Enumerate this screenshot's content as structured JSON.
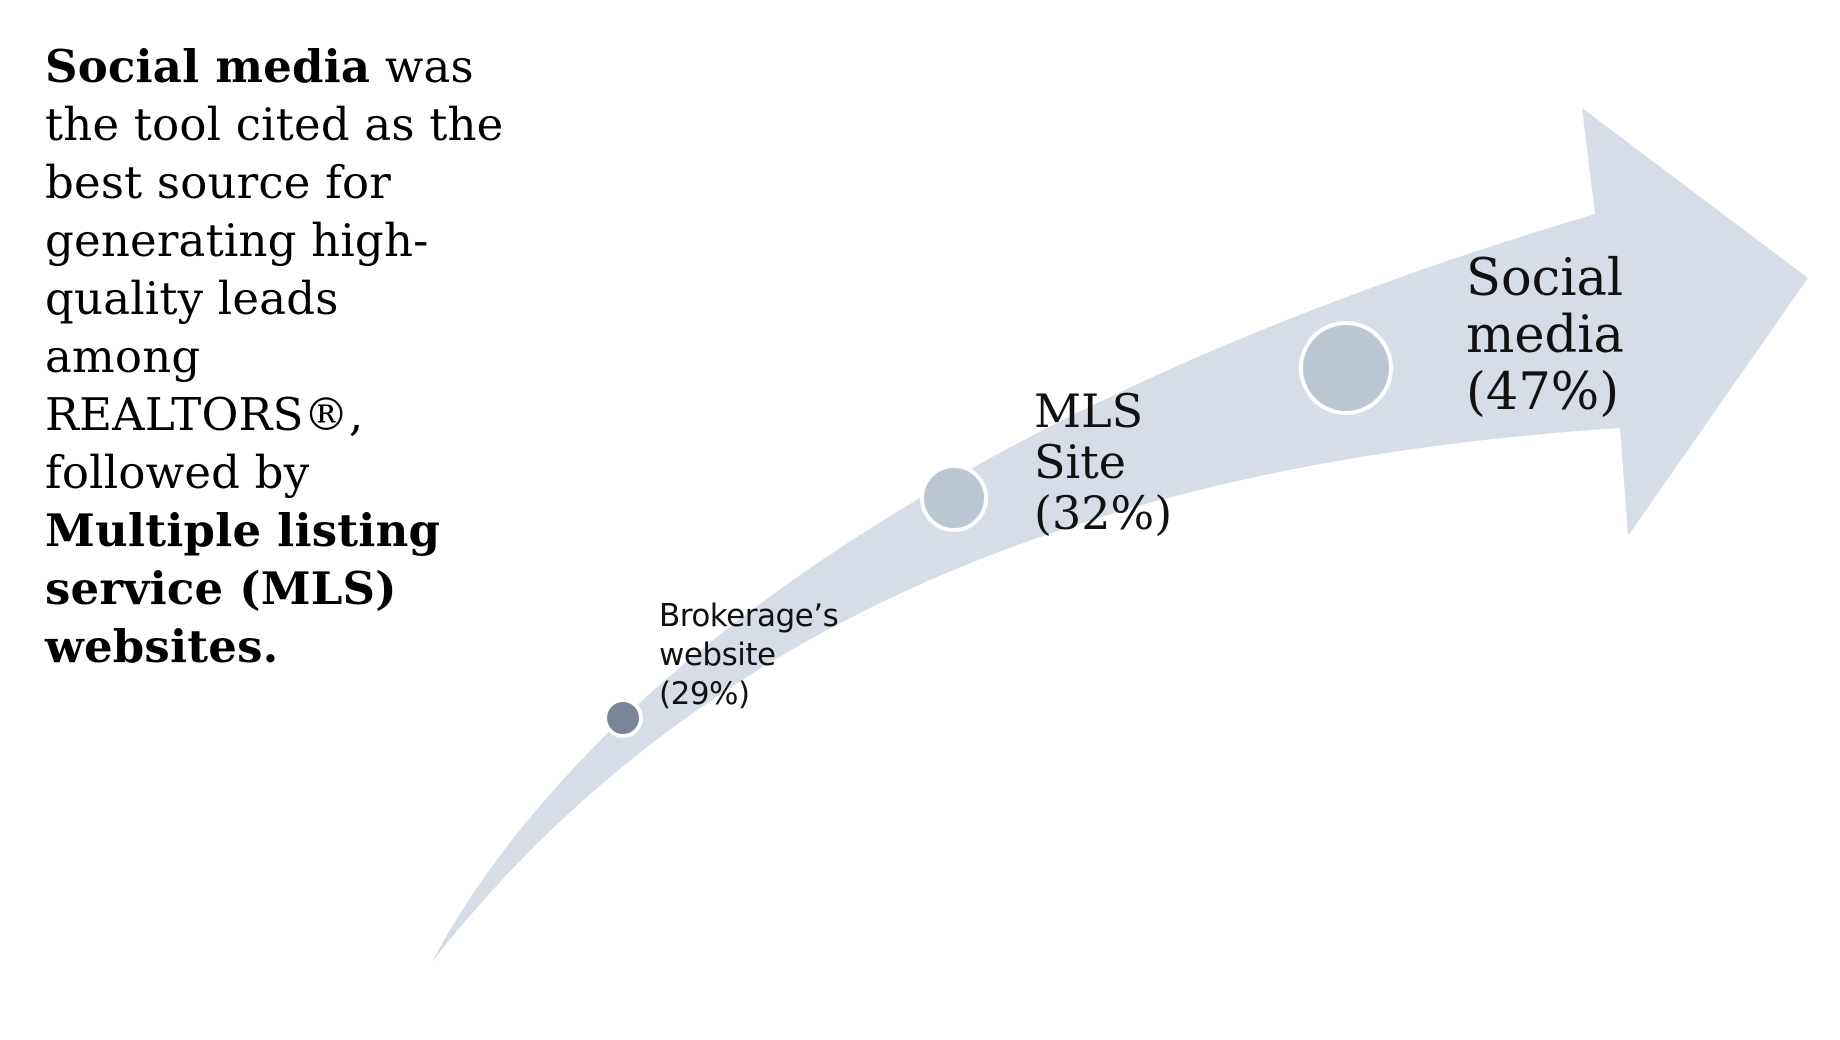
{
  "intro": {
    "lead_bold": "Social media",
    "middle": "was the tool cited as the best source for generating high-quality leads among REALTORS®, followed by",
    "tail_bold": "Multiple listing service (MLS) websites."
  },
  "steps": [
    {
      "line1": "Brokerage’s",
      "line2": "website",
      "line3": "(29%)",
      "percent": 29,
      "marker_color": "#7a8696"
    },
    {
      "line1": "MLS",
      "line2": "Site",
      "line3": "(32%)",
      "percent": 32,
      "marker_color": "#bcc6d2"
    },
    {
      "line1": "Social",
      "line2": "media",
      "line3": "(47%)",
      "percent": 47,
      "marker_color": "#bcc6d2"
    }
  ],
  "colors": {
    "arrow": "#d6dde6",
    "marker_border": "#ffffff"
  }
}
